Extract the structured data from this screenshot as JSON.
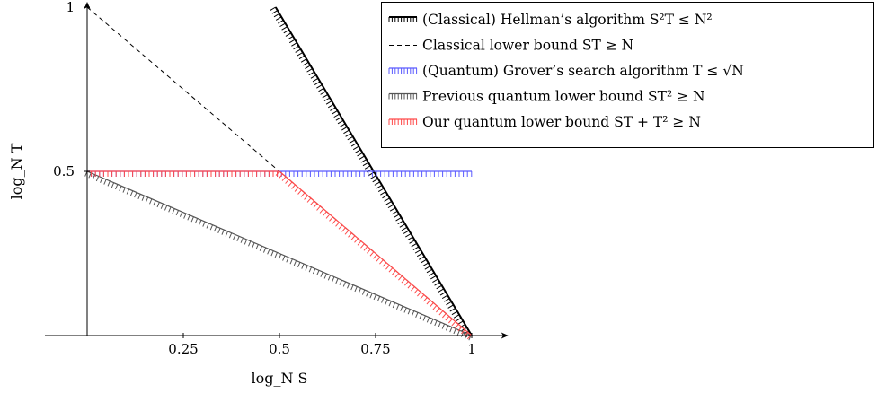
{
  "chart_data": {
    "type": "line",
    "xlabel": "log_N S",
    "ylabel": "log_N T",
    "xlim": [
      0,
      1.1
    ],
    "ylim": [
      0,
      1
    ],
    "x_ticks": [
      {
        "value": 0.25,
        "label": "0.25"
      },
      {
        "value": 0.5,
        "label": "0.5"
      },
      {
        "value": 0.75,
        "label": "0.75"
      },
      {
        "value": 1,
        "label": "1"
      }
    ],
    "y_ticks": [
      {
        "value": 0.5,
        "label": "0.5"
      },
      {
        "value": 1,
        "label": "1"
      }
    ],
    "legend_position": "top-right",
    "series": [
      {
        "name": "(Classical) Hellman’s algorithm S²T ≤ N²",
        "color": "#000000",
        "style": "hatched",
        "points": [
          [
            0.49,
            1
          ],
          [
            1,
            0
          ]
        ]
      },
      {
        "name": "Classical lower bound ST ≥ N",
        "color": "#000000",
        "style": "dashed",
        "points": [
          [
            0,
            1
          ],
          [
            1,
            0
          ]
        ]
      },
      {
        "name": "(Quantum) Grover’s search algorithm T ≤ √N",
        "color": "#5b5bff",
        "style": "hatched",
        "points": [
          [
            0,
            0.5
          ],
          [
            1,
            0.5
          ]
        ]
      },
      {
        "name": "Previous quantum lower bound ST² ≥ N",
        "color": "#555555",
        "style": "hatched",
        "points": [
          [
            0,
            0.5
          ],
          [
            1,
            0
          ]
        ]
      },
      {
        "name": "Our quantum lower bound ST + T² ≥ N",
        "color": "#ff4a4a",
        "style": "hatched",
        "points": [
          [
            0,
            0.5
          ],
          [
            0.5,
            0.5
          ],
          [
            1,
            0
          ]
        ]
      }
    ]
  }
}
